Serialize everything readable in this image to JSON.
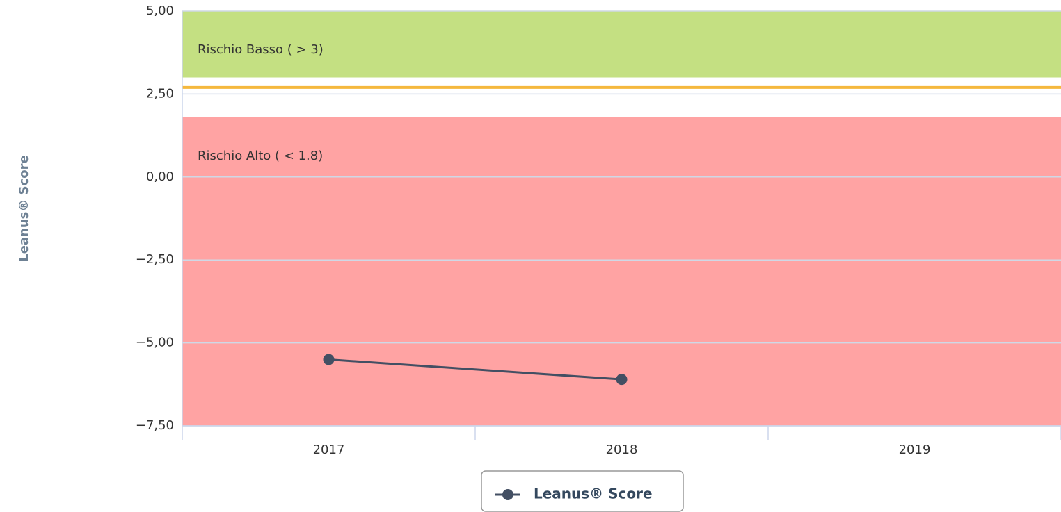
{
  "chart_data": {
    "type": "line",
    "y_axis_label": "Leanus® Score",
    "categories": [
      "2017",
      "2018",
      "2019"
    ],
    "series": [
      {
        "name": "Leanus® Score",
        "color": "#434f63",
        "values": [
          -5.5,
          -6.1,
          null
        ]
      }
    ],
    "ylim": [
      -7.5,
      5
    ],
    "yticks": [
      {
        "value": -7.5,
        "label": "−7,50"
      },
      {
        "value": -5,
        "label": "−5,00"
      },
      {
        "value": -2.5,
        "label": "−2,50"
      },
      {
        "value": 0,
        "label": "0,00"
      },
      {
        "value": 2.5,
        "label": "2,50"
      },
      {
        "value": 5,
        "label": "5,00"
      }
    ],
    "grid": true,
    "plot_bands": [
      {
        "from": 3,
        "to": 5,
        "color": "#c4e082",
        "label": "Rischio Basso ( > 3)",
        "label_color": "#1a7a1a"
      },
      {
        "from": -7.5,
        "to": 1.8,
        "color": "#ffa3a3",
        "label": "Rischio Alto ( < 1.8)",
        "label_color": "#a00000"
      }
    ],
    "plot_lines": [
      {
        "value": 2.7,
        "color": "#f5b83d"
      }
    ],
    "legend": "bottom"
  }
}
